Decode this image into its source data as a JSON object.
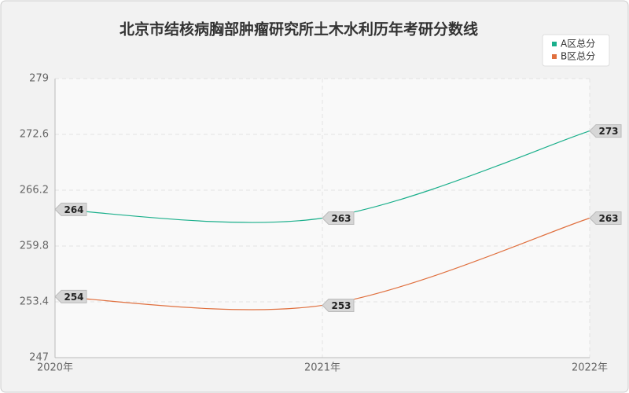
{
  "chart_data": {
    "type": "line",
    "title": "北京市结核病胸部肿瘤研究所土木水利历年考研分数线",
    "categories": [
      "2020年",
      "2021年",
      "2022年"
    ],
    "series": [
      {
        "name": "A区总分",
        "color": "#1aaf8b",
        "values": [
          264,
          263,
          273
        ]
      },
      {
        "name": "B区总分",
        "color": "#e0703f",
        "values": [
          254,
          253,
          263
        ]
      }
    ],
    "ylim": [
      247,
      279
    ],
    "yticks": [
      247,
      253.4,
      259.8,
      266.2,
      272.6,
      279
    ],
    "grid": true,
    "legend": "top-right"
  }
}
